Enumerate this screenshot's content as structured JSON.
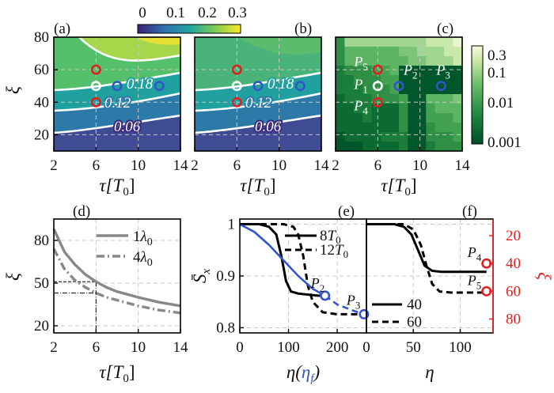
{
  "chart_data": [
    {
      "id": "a",
      "panel_label": "(a)",
      "type": "heatmap",
      "xlabel": "τ[T0]",
      "ylabel": "ξ",
      "xlim": [
        2,
        14
      ],
      "ylim": [
        10,
        80
      ],
      "xticks": [
        "2",
        "6",
        "10",
        "14"
      ],
      "yticks": [
        "20",
        "40",
        "60",
        "80"
      ],
      "colorbar": {
        "ticks": [
          "0",
          "0.1",
          "0.2",
          "0.3"
        ],
        "range": [
          0,
          0.3
        ]
      },
      "contours": [
        {
          "level": 0.06,
          "label": "0.06"
        },
        {
          "level": 0.12,
          "label": "0.12"
        },
        {
          "level": 0.18,
          "label": "0.18"
        },
        {
          "level": 0.24,
          "label": ""
        }
      ],
      "markers": [
        {
          "x": 6,
          "y": 60,
          "color": "#e02020"
        },
        {
          "x": 6,
          "y": 50,
          "color": "#ffffff"
        },
        {
          "x": 6,
          "y": 40,
          "color": "#e02020"
        },
        {
          "x": 8,
          "y": 50,
          "color": "#3355cc"
        },
        {
          "x": 12,
          "y": 50,
          "color": "#3355cc"
        }
      ]
    },
    {
      "id": "b",
      "panel_label": "(b)",
      "type": "heatmap",
      "xlabel": "τ[T0]",
      "xlim": [
        2,
        14
      ],
      "ylim": [
        10,
        80
      ],
      "xticks": [
        "2",
        "6",
        "10",
        "14"
      ],
      "contours": [
        {
          "level": 0.06,
          "label": "0.06"
        },
        {
          "level": 0.12,
          "label": "0.12"
        },
        {
          "level": 0.18,
          "label": "0.18"
        }
      ],
      "markers": [
        {
          "x": 6,
          "y": 60,
          "color": "#e02020"
        },
        {
          "x": 6,
          "y": 50,
          "color": "#ffffff"
        },
        {
          "x": 6,
          "y": 40,
          "color": "#e02020"
        },
        {
          "x": 8,
          "y": 50,
          "color": "#3355cc"
        },
        {
          "x": 12,
          "y": 50,
          "color": "#3355cc"
        }
      ]
    },
    {
      "id": "c",
      "panel_label": "(c)",
      "type": "heatmap",
      "xlabel": "τ[T0]",
      "xlim": [
        2,
        14
      ],
      "ylim": [
        10,
        80
      ],
      "xticks": [
        "2",
        "6",
        "10",
        "14"
      ],
      "colorbar": {
        "ticks": [
          "0.3",
          "0.1",
          "0.01",
          "0.001"
        ],
        "scale": "log",
        "range": [
          0.001,
          0.3
        ]
      },
      "points": [
        {
          "name": "P5",
          "x": 6,
          "y": 60,
          "color": "#e02020"
        },
        {
          "name": "P1",
          "x": 6,
          "y": 50,
          "color": "#ffffff"
        },
        {
          "name": "P4",
          "x": 6,
          "y": 40,
          "color": "#e02020"
        },
        {
          "name": "P2",
          "x": 8,
          "y": 50,
          "color": "#3355cc"
        },
        {
          "name": "P3",
          "x": 12,
          "y": 50,
          "color": "#3355cc"
        }
      ]
    },
    {
      "id": "d",
      "panel_label": "(d)",
      "type": "line",
      "xlabel": "τ[T0]",
      "ylabel": "ξ",
      "xlim": [
        2,
        14
      ],
      "ylim": [
        15,
        95
      ],
      "xticks": [
        "2",
        "6",
        "10",
        "14"
      ],
      "yticks": [
        "20",
        "50",
        "80"
      ],
      "series": [
        {
          "name": "1λ0",
          "style": "solid",
          "x": [
            2,
            3,
            4,
            5,
            6,
            7,
            8,
            10,
            12,
            14
          ],
          "y": [
            88,
            72,
            63,
            56,
            51,
            47,
            44,
            40,
            36.5,
            34
          ]
        },
        {
          "name": "4λ0",
          "style": "dashdot",
          "x": [
            2,
            3,
            4,
            5,
            6,
            7,
            8,
            10,
            12,
            14
          ],
          "y": [
            74,
            60,
            52,
            47,
            43,
            40,
            38,
            34,
            31,
            29
          ]
        }
      ],
      "guides": {
        "x": 6,
        "y": [
          51,
          43
        ]
      }
    },
    {
      "id": "e",
      "panel_label": "(e)",
      "type": "line",
      "xlabel": "η(ηf)",
      "ylabel": "S̄x",
      "xlim": [
        0,
        260
      ],
      "ylim": [
        0.79,
        1.01
      ],
      "xticks": [
        "0",
        "100",
        "200"
      ],
      "yticks": [
        "0.8",
        "0.9",
        "1"
      ],
      "series": [
        {
          "name": "8T0",
          "style": "solid",
          "x": [
            0,
            40,
            60,
            75,
            85,
            95,
            105,
            120,
            140,
            160,
            175
          ],
          "y": [
            1.0,
            1.0,
            0.995,
            0.98,
            0.94,
            0.89,
            0.87,
            0.866,
            0.864,
            0.862,
            0.862
          ]
        },
        {
          "name": "12T0",
          "style": "dashed",
          "x": [
            0,
            90,
            110,
            120,
            130,
            140,
            150,
            170,
            200,
            230,
            255
          ],
          "y": [
            1.0,
            1.0,
            0.995,
            0.98,
            0.94,
            0.88,
            0.85,
            0.83,
            0.826,
            0.826,
            0.826
          ]
        },
        {
          "name": "ηf",
          "style": "solid-blue",
          "x": [
            0,
            30,
            60,
            90,
            120,
            150,
            175
          ],
          "y": [
            1.0,
            0.985,
            0.96,
            0.93,
            0.9,
            0.875,
            0.862
          ]
        },
        {
          "name": "ηf-dashed",
          "style": "dashed-blue",
          "x": [
            175,
            200,
            230,
            255
          ],
          "y": [
            0.862,
            0.845,
            0.834,
            0.826
          ]
        }
      ],
      "points": [
        {
          "name": "P2",
          "x": 175,
          "y": 0.862,
          "color": "#3355cc"
        },
        {
          "name": "P3",
          "x": 255,
          "y": 0.826,
          "color": "#3355cc"
        }
      ]
    },
    {
      "id": "f",
      "panel_label": "(f)",
      "type": "line",
      "xlabel": "η",
      "ylabel": "ξ",
      "xlim": [
        0,
        135
      ],
      "ylim": [
        0.79,
        1.01
      ],
      "y2lim": [
        90,
        8
      ],
      "xticks": [
        "0",
        "50",
        "100"
      ],
      "y2ticks": [
        "20",
        "40",
        "60",
        "80"
      ],
      "series": [
        {
          "name": "40",
          "style": "solid",
          "x": [
            0,
            30,
            40,
            48,
            55,
            62,
            70,
            80,
            100,
            120,
            128
          ],
          "y": [
            1.0,
            1.0,
            0.995,
            0.98,
            0.95,
            0.92,
            0.91,
            0.908,
            0.908,
            0.908,
            0.908
          ]
        },
        {
          "name": "60",
          "style": "dashed",
          "x": [
            0,
            40,
            50,
            58,
            64,
            70,
            78,
            90,
            110,
            128
          ],
          "y": [
            1.0,
            1.0,
            0.99,
            0.96,
            0.92,
            0.885,
            0.87,
            0.868,
            0.868,
            0.868
          ]
        }
      ],
      "points": [
        {
          "name": "P4",
          "x": 128,
          "xi": 40,
          "color": "#e02020"
        },
        {
          "name": "P5",
          "x": 128,
          "xi": 60,
          "color": "#e02020"
        }
      ]
    }
  ]
}
